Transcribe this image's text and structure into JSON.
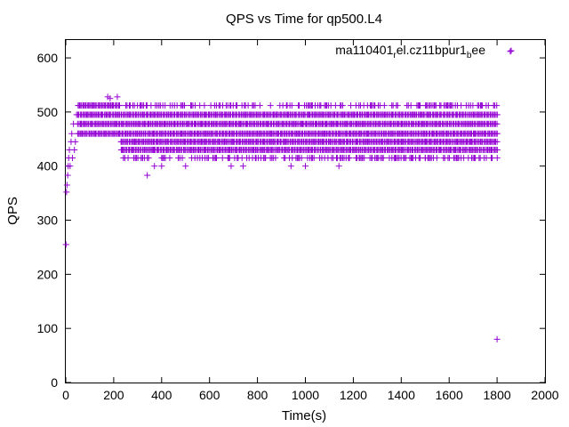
{
  "chart_data": {
    "type": "scatter",
    "title": "QPS vs Time for qp500.L4",
    "xlabel": "Time(s)",
    "ylabel": "QPS",
    "xlim": [
      0,
      2000
    ],
    "ylim": [
      0,
      633
    ],
    "xticks": [
      0,
      200,
      400,
      600,
      800,
      1000,
      1200,
      1400,
      1600,
      1800,
      2000
    ],
    "yticks": [
      0,
      100,
      200,
      300,
      400,
      500,
      600
    ],
    "grid": false,
    "legend_position": "top-right",
    "marker": "+",
    "color": "#9400d3",
    "legend": {
      "parts": [
        {
          "text": "ma110401",
          "sub": false
        },
        {
          "text": "r",
          "sub": true
        },
        {
          "text": "el.cz11bpur1",
          "sub": false
        },
        {
          "text": "b",
          "sub": true
        },
        {
          "text": "ee",
          "sub": false
        }
      ]
    },
    "series": [
      {
        "levels": [
          415,
          430,
          445,
          460,
          478,
          495,
          512
        ],
        "points": [
          [
            1,
            255
          ],
          [
            3,
            352
          ],
          [
            5,
            365
          ],
          [
            8,
            383
          ],
          [
            10,
            400
          ],
          [
            12,
            415
          ],
          [
            15,
            430
          ],
          [
            18,
            400
          ],
          [
            22,
            445
          ],
          [
            25,
            460
          ],
          [
            28,
            415
          ],
          [
            32,
            478
          ],
          [
            36,
            430
          ],
          [
            40,
            445
          ],
          [
            45,
            495
          ],
          [
            55,
            460
          ],
          [
            65,
            478
          ],
          [
            75,
            512
          ],
          [
            90,
            495
          ],
          [
            110,
            512
          ],
          [
            130,
            478
          ],
          [
            150,
            495
          ],
          [
            175,
            528
          ],
          [
            185,
            525
          ],
          [
            195,
            512
          ],
          [
            215,
            528
          ],
          [
            235,
            430
          ],
          [
            260,
            415
          ],
          [
            290,
            445
          ],
          [
            320,
            415
          ],
          [
            340,
            383
          ],
          [
            370,
            400
          ],
          [
            400,
            400
          ],
          [
            500,
            400
          ],
          [
            690,
            400
          ],
          [
            740,
            400
          ],
          [
            940,
            400
          ],
          [
            1000,
            400
          ],
          [
            1140,
            400
          ],
          [
            1180,
            415
          ],
          [
            1300,
            415
          ],
          [
            1500,
            415
          ],
          [
            1700,
            415
          ],
          [
            1800,
            80
          ],
          [
            1855,
            612
          ]
        ]
      }
    ]
  }
}
